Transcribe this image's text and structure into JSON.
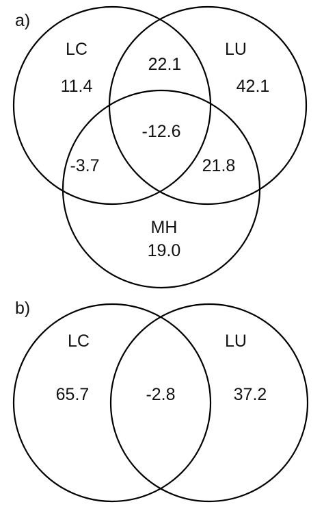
{
  "panel_a": {
    "label": "a)",
    "sets": {
      "lc": "LC",
      "lu": "LU",
      "mh": "MH"
    },
    "values": {
      "lc_only": "11.4",
      "lu_only": "42.1",
      "mh_only": "19.0",
      "lc_lu": "22.1",
      "lc_mh": "-3.7",
      "lu_mh": "21.8",
      "lc_lu_mh": "-12.6"
    }
  },
  "panel_b": {
    "label": "b)",
    "sets": {
      "lc": "LC",
      "lu": "LU"
    },
    "values": {
      "lc_only": "65.7",
      "lu_only": "37.2",
      "lc_lu": "-2.8"
    }
  },
  "colors": {
    "stroke": "#000000",
    "text": "#111111",
    "background": "#ffffff"
  }
}
